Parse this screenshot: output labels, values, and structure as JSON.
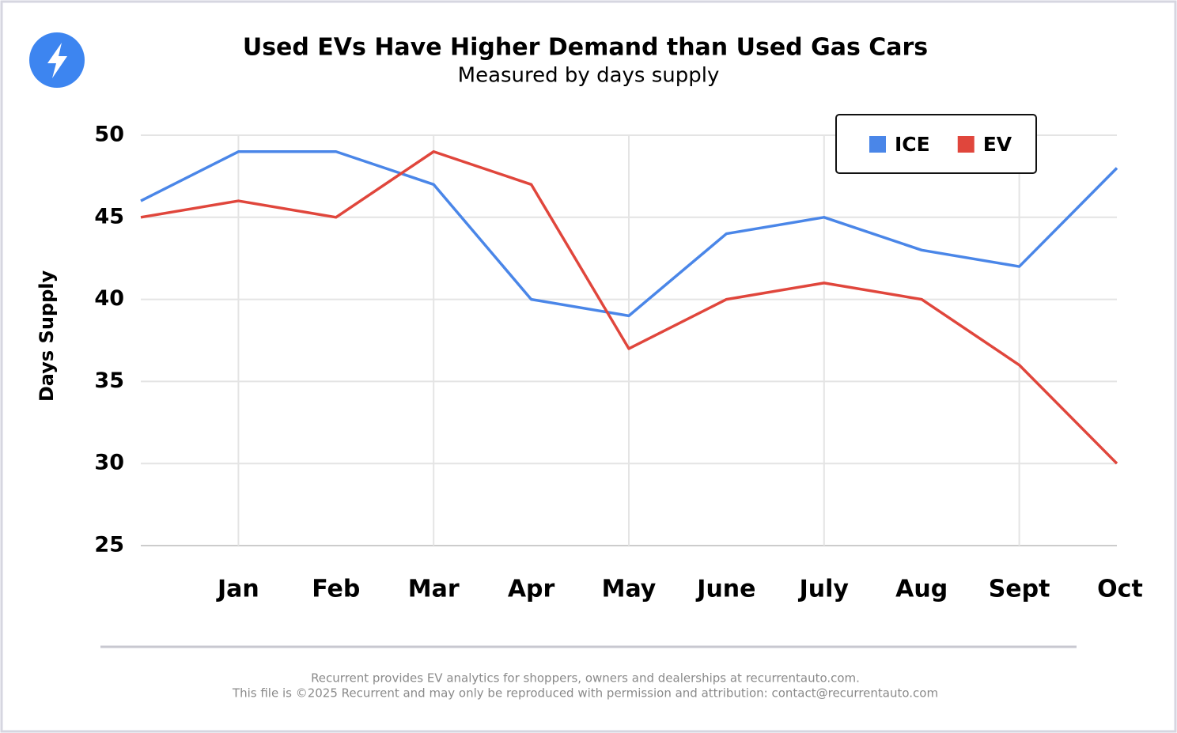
{
  "chart_data": {
    "type": "line",
    "title": "Used EVs Have Higher Demand than Used Gas Cars",
    "subtitle": "Measured by days supply",
    "y_label": "Days Supply",
    "categories": [
      null,
      "Jan",
      "Feb",
      "Mar",
      "Apr",
      "May",
      "June",
      "July",
      "Aug",
      "Sept",
      "Oct"
    ],
    "series": [
      {
        "name": "ICE",
        "color": "#4a86e8",
        "values": [
          46,
          49,
          49,
          47,
          40,
          39,
          44,
          45,
          43,
          42,
          48
        ]
      },
      {
        "name": "EV",
        "color": "#e0463c",
        "values": [
          45,
          46,
          45,
          49,
          47,
          37,
          40,
          41,
          40,
          36,
          30
        ]
      }
    ],
    "ylim": [
      25,
      50
    ],
    "yticks": [
      25,
      30,
      35,
      40,
      45,
      50
    ],
    "grid": true,
    "legend": "upper right",
    "footer": [
      "Recurrent provides EV analytics for shoppers, owners and dealerships at recurrentauto.com.",
      "This file is ©2025 Recurrent and may only be reproduced with permission and attribution: contact@recurrentauto.com"
    ]
  }
}
